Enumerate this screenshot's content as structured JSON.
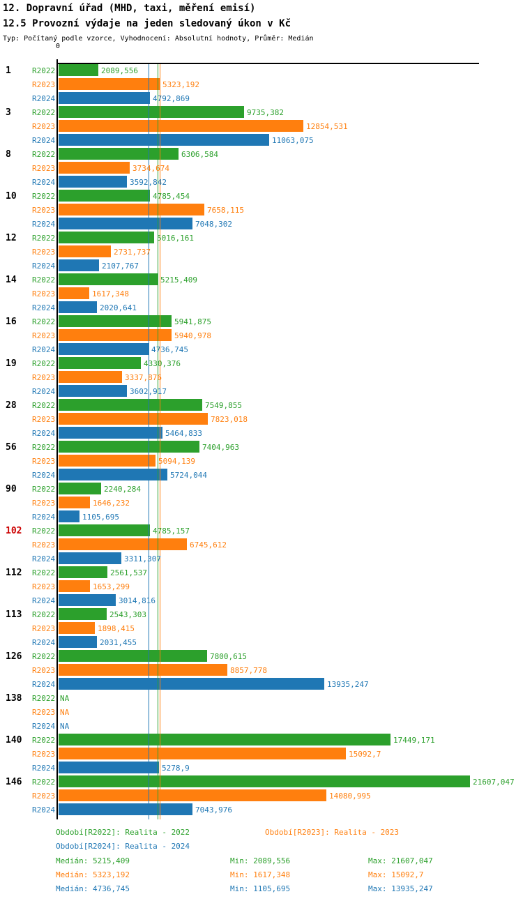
{
  "header": {
    "title": "12. Dopravní úřad (MHD, taxi, měření emisí)",
    "subtitle": "12.5 Provozní výdaje na jeden sledovaný úkon v Kč",
    "meta": "Typ: Počítaný podle vzorce, Vyhodnocení: Absolutní hodnoty, Průměr: Medián"
  },
  "colors": {
    "r2022": "#2ca02c",
    "r2023": "#ff7f0e",
    "r2024": "#1f77b4",
    "highlight": "#cc0000",
    "axis": "#000000"
  },
  "chart_data": {
    "type": "bar",
    "orientation": "horizontal",
    "title": "12.5 Provozní výdaje na jeden sledovaný úkon v Kč",
    "value_unit": "Kč",
    "origin_label": "0",
    "xmax_value": 21607.047,
    "grid": false,
    "na_label": "NA",
    "categories": [
      "1",
      "3",
      "8",
      "10",
      "12",
      "14",
      "16",
      "19",
      "28",
      "56",
      "90",
      "102",
      "112",
      "113",
      "126",
      "138",
      "140",
      "146"
    ],
    "highlighted_category": "102",
    "series": [
      {
        "name": "R2022",
        "legend": "Období[R2022]: Realita - 2022",
        "median": 5215.409,
        "min": 2089.556,
        "max": 21607.047
      },
      {
        "name": "R2023",
        "legend": "Období[R2023]: Realita - 2023",
        "median": 5323.192,
        "min": 1617.348,
        "max": 15092.7
      },
      {
        "name": "R2024",
        "legend": "Období[R2024]: Realita - 2024",
        "median": 4736.745,
        "min": 1105.695,
        "max": 13935.247
      }
    ],
    "groups": [
      {
        "label": "1",
        "highlight": false,
        "bars": [
          {
            "series": "R2022",
            "value": 2089.556,
            "display": "2089,556"
          },
          {
            "series": "R2023",
            "value": 5323.192,
            "display": "5323,192"
          },
          {
            "series": "R2024",
            "value": 4792.869,
            "display": "4792,869"
          }
        ]
      },
      {
        "label": "3",
        "highlight": false,
        "bars": [
          {
            "series": "R2022",
            "value": 9735.382,
            "display": "9735,382"
          },
          {
            "series": "R2023",
            "value": 12854.531,
            "display": "12854,531"
          },
          {
            "series": "R2024",
            "value": 11063.075,
            "display": "11063,075"
          }
        ]
      },
      {
        "label": "8",
        "highlight": false,
        "bars": [
          {
            "series": "R2022",
            "value": 6306.584,
            "display": "6306,584"
          },
          {
            "series": "R2023",
            "value": 3734.674,
            "display": "3734,674"
          },
          {
            "series": "R2024",
            "value": 3592.842,
            "display": "3592,842"
          }
        ]
      },
      {
        "label": "10",
        "highlight": false,
        "bars": [
          {
            "series": "R2022",
            "value": 4785.454,
            "display": "4785,454"
          },
          {
            "series": "R2023",
            "value": 7658.115,
            "display": "7658,115"
          },
          {
            "series": "R2024",
            "value": 7048.302,
            "display": "7048,302"
          }
        ]
      },
      {
        "label": "12",
        "highlight": false,
        "bars": [
          {
            "series": "R2022",
            "value": 5016.161,
            "display": "5016,161"
          },
          {
            "series": "R2023",
            "value": 2731.737,
            "display": "2731,737"
          },
          {
            "series": "R2024",
            "value": 2107.767,
            "display": "2107,767"
          }
        ]
      },
      {
        "label": "14",
        "highlight": false,
        "bars": [
          {
            "series": "R2022",
            "value": 5215.409,
            "display": "5215,409"
          },
          {
            "series": "R2023",
            "value": 1617.348,
            "display": "1617,348"
          },
          {
            "series": "R2024",
            "value": 2020.641,
            "display": "2020,641"
          }
        ]
      },
      {
        "label": "16",
        "highlight": false,
        "bars": [
          {
            "series": "R2022",
            "value": 5941.875,
            "display": "5941,875"
          },
          {
            "series": "R2023",
            "value": 5940.978,
            "display": "5940,978"
          },
          {
            "series": "R2024",
            "value": 4736.745,
            "display": "4736,745"
          }
        ]
      },
      {
        "label": "19",
        "highlight": false,
        "bars": [
          {
            "series": "R2022",
            "value": 4330.376,
            "display": "4330,376"
          },
          {
            "series": "R2023",
            "value": 3337.876,
            "display": "3337,876"
          },
          {
            "series": "R2024",
            "value": 3602.917,
            "display": "3602,917"
          }
        ]
      },
      {
        "label": "28",
        "highlight": false,
        "bars": [
          {
            "series": "R2022",
            "value": 7549.855,
            "display": "7549,855"
          },
          {
            "series": "R2023",
            "value": 7823.018,
            "display": "7823,018"
          },
          {
            "series": "R2024",
            "value": 5464.833,
            "display": "5464,833"
          }
        ]
      },
      {
        "label": "56",
        "highlight": false,
        "bars": [
          {
            "series": "R2022",
            "value": 7404.963,
            "display": "7404,963"
          },
          {
            "series": "R2023",
            "value": 5094.139,
            "display": "5094,139"
          },
          {
            "series": "R2024",
            "value": 5724.044,
            "display": "5724,044"
          }
        ]
      },
      {
        "label": "90",
        "highlight": false,
        "bars": [
          {
            "series": "R2022",
            "value": 2240.284,
            "display": "2240,284"
          },
          {
            "series": "R2023",
            "value": 1646.232,
            "display": "1646,232"
          },
          {
            "series": "R2024",
            "value": 1105.695,
            "display": "1105,695"
          }
        ]
      },
      {
        "label": "102",
        "highlight": true,
        "bars": [
          {
            "series": "R2022",
            "value": 4785.157,
            "display": "4785,157"
          },
          {
            "series": "R2023",
            "value": 6745.612,
            "display": "6745,612"
          },
          {
            "series": "R2024",
            "value": 3311.307,
            "display": "3311,307"
          }
        ]
      },
      {
        "label": "112",
        "highlight": false,
        "bars": [
          {
            "series": "R2022",
            "value": 2561.537,
            "display": "2561,537"
          },
          {
            "series": "R2023",
            "value": 1653.299,
            "display": "1653,299"
          },
          {
            "series": "R2024",
            "value": 3014.816,
            "display": "3014,816"
          }
        ]
      },
      {
        "label": "113",
        "highlight": false,
        "bars": [
          {
            "series": "R2022",
            "value": 2543.303,
            "display": "2543,303"
          },
          {
            "series": "R2023",
            "value": 1898.415,
            "display": "1898,415"
          },
          {
            "series": "R2024",
            "value": 2031.455,
            "display": "2031,455"
          }
        ]
      },
      {
        "label": "126",
        "highlight": false,
        "bars": [
          {
            "series": "R2022",
            "value": 7800.615,
            "display": "7800,615"
          },
          {
            "series": "R2023",
            "value": 8857.778,
            "display": "8857,778"
          },
          {
            "series": "R2024",
            "value": 13935.247,
            "display": "13935,247"
          }
        ]
      },
      {
        "label": "138",
        "highlight": false,
        "bars": [
          {
            "series": "R2022",
            "value": null,
            "display": "NA"
          },
          {
            "series": "R2023",
            "value": null,
            "display": "NA"
          },
          {
            "series": "R2024",
            "value": null,
            "display": "NA"
          }
        ]
      },
      {
        "label": "140",
        "highlight": false,
        "bars": [
          {
            "series": "R2022",
            "value": 17449.171,
            "display": "17449,171"
          },
          {
            "series": "R2023",
            "value": 15092.7,
            "display": "15092,7"
          },
          {
            "series": "R2024",
            "value": 5278.9,
            "display": "5278,9"
          }
        ]
      },
      {
        "label": "146",
        "highlight": false,
        "bars": [
          {
            "series": "R2022",
            "value": 21607.047,
            "display": "21607,047"
          },
          {
            "series": "R2023",
            "value": 14080.995,
            "display": "14080,995"
          },
          {
            "series": "R2024",
            "value": 7043.976,
            "display": "7043,976"
          }
        ]
      }
    ]
  },
  "footer": {
    "legend": [
      {
        "label": "Období[R2022]: Realita - 2022"
      },
      {
        "label": "Období[R2023]: Realita - 2023"
      },
      {
        "label": "Období[R2024]: Realita - 2024"
      }
    ],
    "stats": [
      {
        "median": "Medián: 5215,409",
        "min": "Min: 2089,556",
        "max": "Max: 21607,047"
      },
      {
        "median": "Medián: 5323,192",
        "min": "Min: 1617,348",
        "max": "Max: 15092,7"
      },
      {
        "median": "Medián: 4736,745",
        "min": "Min: 1105,695",
        "max": "Max: 13935,247"
      }
    ]
  }
}
